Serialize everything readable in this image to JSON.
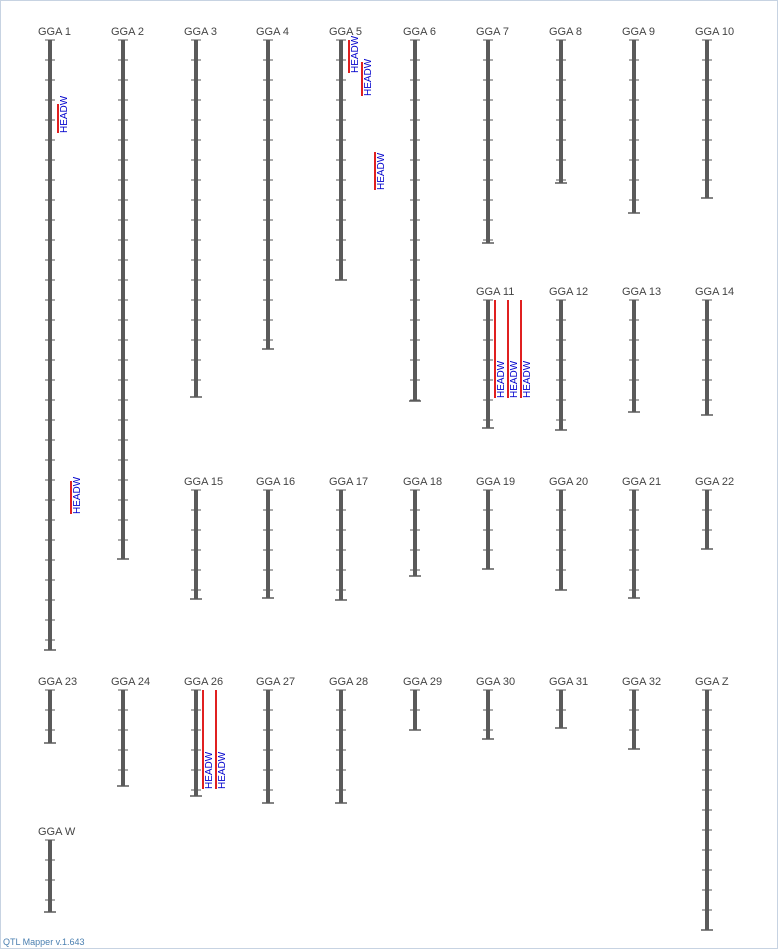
{
  "app": {
    "footer_text": "QTL Mapper v.1.643"
  },
  "colors": {
    "chromosome": "#5a5a5a",
    "tick": "#5a5a5a",
    "qtl_bar": "#e02020",
    "qtl_text": "#0000cc",
    "label": "#444444",
    "border": "#c7d3e2"
  },
  "chromosomes": [
    {
      "name": "GGA 1",
      "qtls": [
        {
          "trait": "HEADW"
        },
        {
          "trait": "HEADW"
        }
      ]
    },
    {
      "name": "GGA 2",
      "qtls": []
    },
    {
      "name": "GGA 3",
      "qtls": []
    },
    {
      "name": "GGA 4",
      "qtls": []
    },
    {
      "name": "GGA 5",
      "qtls": [
        {
          "trait": "HEADW"
        },
        {
          "trait": "HEADW"
        },
        {
          "trait": "HEADW"
        }
      ]
    },
    {
      "name": "GGA 6",
      "qtls": []
    },
    {
      "name": "GGA 7",
      "qtls": []
    },
    {
      "name": "GGA 8",
      "qtls": []
    },
    {
      "name": "GGA 9",
      "qtls": []
    },
    {
      "name": "GGA 10",
      "qtls": []
    },
    {
      "name": "GGA 11",
      "qtls": [
        {
          "trait": "HEADW"
        },
        {
          "trait": "HEADW"
        },
        {
          "trait": "HEADW"
        }
      ]
    },
    {
      "name": "GGA 12",
      "qtls": []
    },
    {
      "name": "GGA 13",
      "qtls": []
    },
    {
      "name": "GGA 14",
      "qtls": []
    },
    {
      "name": "GGA 15",
      "qtls": []
    },
    {
      "name": "GGA 16",
      "qtls": []
    },
    {
      "name": "GGA 17",
      "qtls": []
    },
    {
      "name": "GGA 18",
      "qtls": []
    },
    {
      "name": "GGA 19",
      "qtls": []
    },
    {
      "name": "GGA 20",
      "qtls": []
    },
    {
      "name": "GGA 21",
      "qtls": []
    },
    {
      "name": "GGA 22",
      "qtls": []
    },
    {
      "name": "GGA 23",
      "qtls": []
    },
    {
      "name": "GGA 24",
      "qtls": []
    },
    {
      "name": "GGA 26",
      "qtls": [
        {
          "trait": "HEADW"
        },
        {
          "trait": "HEADW"
        }
      ]
    },
    {
      "name": "GGA 27",
      "qtls": []
    },
    {
      "name": "GGA 28",
      "qtls": []
    },
    {
      "name": "GGA 29",
      "qtls": []
    },
    {
      "name": "GGA 30",
      "qtls": []
    },
    {
      "name": "GGA 31",
      "qtls": []
    },
    {
      "name": "GGA 32",
      "qtls": []
    },
    {
      "name": "GGA Z",
      "qtls": []
    },
    {
      "name": "GGA W",
      "qtls": []
    }
  ]
}
